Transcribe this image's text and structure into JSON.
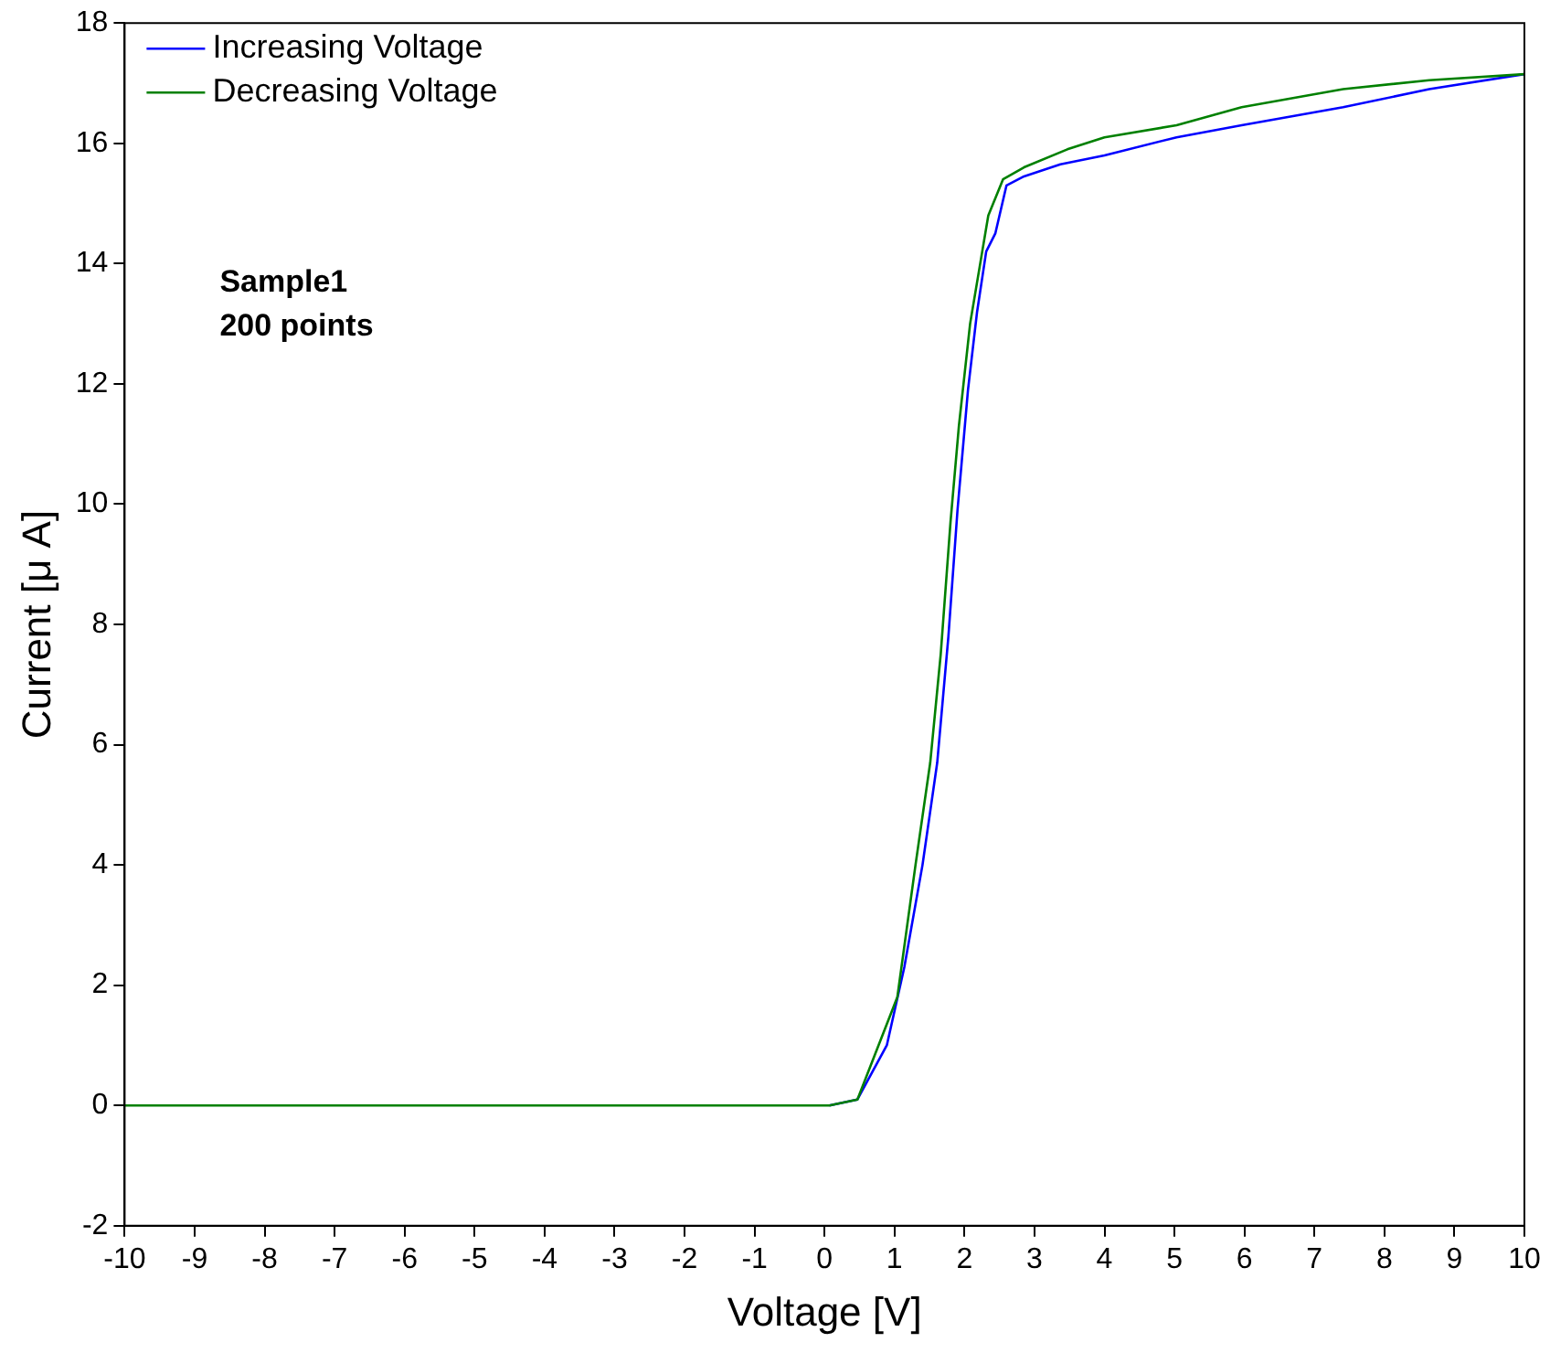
{
  "chart_data": {
    "type": "line",
    "xlabel": "Voltage [V]",
    "ylabel": "Current [μ A]",
    "xlim": [
      -10,
      10
    ],
    "xticks": [
      -10,
      -9,
      -8,
      -7,
      -6,
      -5,
      -4,
      -3,
      -2,
      -1,
      0,
      1,
      2,
      3,
      4,
      5,
      6,
      7,
      8,
      9,
      10
    ],
    "ylim": [
      -2,
      18
    ],
    "yticks": [
      -2,
      0,
      2,
      4,
      6,
      8,
      10,
      12,
      14,
      16,
      18
    ],
    "grid": false,
    "legend": "top left",
    "marker": "none",
    "line_style": "solid",
    "annotations": [
      "Sample1",
      "200 points"
    ],
    "series": [
      {
        "name": "Increasing Voltage",
        "color": "#0000ff",
        "x": [
          0.07,
          0.47,
          0.89,
          1.14,
          1.4,
          1.61,
          1.77,
          1.9,
          2.05,
          2.18,
          2.31,
          2.44,
          2.6,
          2.85,
          3.37,
          4,
          5.03,
          5.96,
          7.41,
          8.64,
          10
        ],
        "values": [
          0,
          0.1,
          1,
          2.3,
          4,
          5.7,
          7.8,
          9.9,
          11.9,
          13.2,
          14.2,
          14.5,
          15.3,
          15.45,
          15.65,
          15.8,
          16.1,
          16.3,
          16.6,
          16.9,
          17.15
        ]
      },
      {
        "name": "Decreasing Voltage",
        "color": "#008000",
        "x": [
          -10,
          -5,
          0,
          0.07,
          0.47,
          1.04,
          1.3,
          1.51,
          1.66,
          1.8,
          1.92,
          2.08,
          2.21,
          2.34,
          2.55,
          2.85,
          3.47,
          4,
          5.03,
          5.96,
          7.41,
          8.64,
          10
        ],
        "values": [
          0,
          0,
          0,
          0,
          0.1,
          1.8,
          4,
          5.7,
          7.5,
          9.7,
          11.3,
          13,
          13.9,
          14.8,
          15.4,
          15.6,
          15.9,
          16.1,
          16.3,
          16.6,
          16.9,
          17.05,
          17.15
        ]
      }
    ]
  }
}
